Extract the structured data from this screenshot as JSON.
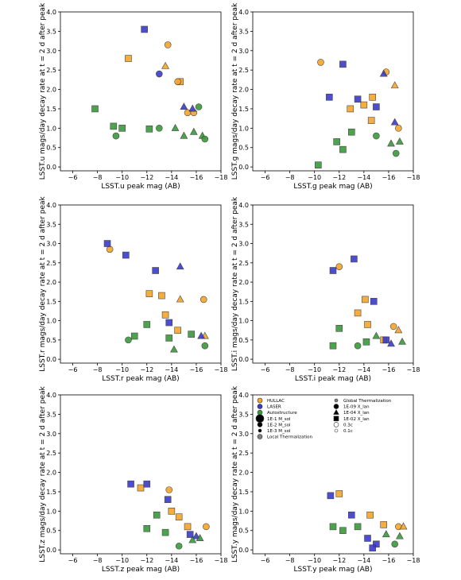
{
  "chart_data": [
    {
      "type": "scatter",
      "xlabel": "LSST.u peak mag (AB)",
      "ylabel": "LSST.u mags/day decay rate at t = 2 d after peak",
      "xlim": [
        -5,
        -18
      ],
      "ylim": [
        -0.1,
        4.0
      ],
      "xticks": [
        {
          "value": -6,
          "label": "−6"
        },
        {
          "value": -8,
          "label": "−8"
        },
        {
          "value": -10,
          "label": "−10"
        },
        {
          "value": -12,
          "label": "−12"
        },
        {
          "value": -14,
          "label": "−14"
        },
        {
          "value": -16,
          "label": "−16"
        },
        {
          "value": -18,
          "label": "−18"
        }
      ],
      "yticks": [
        {
          "value": 0,
          "label": "0.0"
        },
        {
          "value": 0.5,
          "label": "0.5"
        },
        {
          "value": 1,
          "label": "1.0"
        },
        {
          "value": 1.5,
          "label": "1.5"
        },
        {
          "value": 2,
          "label": "2.0"
        },
        {
          "value": 2.5,
          "label": "2.5"
        },
        {
          "value": 3,
          "label": "3.0"
        },
        {
          "value": 3.5,
          "label": "3.5"
        },
        {
          "value": 4,
          "label": "4.0"
        }
      ],
      "series": [
        {
          "color": "#f4a52a",
          "markers": [
            "s",
            "s",
            "^",
            "o",
            "o",
            "o",
            "o"
          ],
          "x": [
            -10.5,
            -14.7,
            -13.5,
            -13.7,
            -15.3,
            -15.8,
            -14.5
          ],
          "y": [
            2.8,
            2.2,
            2.6,
            3.15,
            1.4,
            1.4,
            2.2
          ]
        },
        {
          "color": "#3a3acc",
          "markers": [
            "s",
            "o",
            "^",
            "^"
          ],
          "x": [
            -11.8,
            -13,
            -15,
            -15.7
          ],
          "y": [
            3.55,
            2.4,
            1.55,
            1.5
          ]
        },
        {
          "color": "#3a9a3a",
          "markers": [
            "s",
            "s",
            "s",
            "s",
            "^",
            "^",
            "^",
            "^",
            "o",
            "o",
            "o",
            "o"
          ],
          "x": [
            -7.8,
            -9.3,
            -12.2,
            -10,
            -15,
            -15.8,
            -16.5,
            -14.3,
            -16.2,
            -16.7,
            -13,
            -9.5
          ],
          "y": [
            1.5,
            1.05,
            0.98,
            1.0,
            0.8,
            0.9,
            0.8,
            1.0,
            1.55,
            0.72,
            1.0,
            0.8
          ]
        }
      ]
    },
    {
      "type": "scatter",
      "xlabel": "LSST.g peak mag (AB)",
      "ylabel": "LSST.g mags/day decay rate at t = 2 d after peak",
      "xlim": [
        -5,
        -18
      ],
      "ylim": [
        -0.1,
        4.0
      ],
      "xticks": [
        {
          "value": -6,
          "label": "−6"
        },
        {
          "value": -8,
          "label": "−8"
        },
        {
          "value": -10,
          "label": "−10"
        },
        {
          "value": -12,
          "label": "−12"
        },
        {
          "value": -14,
          "label": "−14"
        },
        {
          "value": -16,
          "label": "−16"
        },
        {
          "value": -18,
          "label": "−18"
        }
      ],
      "yticks": [
        {
          "value": 0,
          "label": "0.0"
        },
        {
          "value": 0.5,
          "label": "0.5"
        },
        {
          "value": 1,
          "label": "1.0"
        },
        {
          "value": 1.5,
          "label": "1.5"
        },
        {
          "value": 2,
          "label": "2.0"
        },
        {
          "value": 2.5,
          "label": "2.5"
        },
        {
          "value": 3,
          "label": "3.0"
        },
        {
          "value": 3.5,
          "label": "3.5"
        },
        {
          "value": 4,
          "label": "4.0"
        }
      ],
      "series": [
        {
          "color": "#f4a52a",
          "markers": [
            "o",
            "s",
            "s",
            "o",
            "^",
            "o",
            "s",
            "s"
          ],
          "x": [
            -10.5,
            -14,
            -14.7,
            -15.8,
            -16.5,
            -16.8,
            -14.6,
            -12.9
          ],
          "y": [
            2.7,
            1.6,
            1.8,
            2.45,
            2.1,
            1.0,
            1.2,
            1.5
          ]
        },
        {
          "color": "#3a3acc",
          "markers": [
            "s",
            "s",
            "s",
            "s",
            "^",
            "^"
          ],
          "x": [
            -12.3,
            -11.2,
            -13.5,
            -15,
            -16.5,
            -15.6
          ],
          "y": [
            2.65,
            1.8,
            1.75,
            1.55,
            1.15,
            2.4
          ]
        },
        {
          "color": "#3a9a3a",
          "markers": [
            "s",
            "s",
            "s",
            "^",
            "o",
            "^",
            "s",
            "o"
          ],
          "x": [
            -12.3,
            -11.8,
            -13,
            -16.2,
            -16.6,
            -16.9,
            -10.3,
            -15
          ],
          "y": [
            0.45,
            0.65,
            0.9,
            0.6,
            0.35,
            0.65,
            0.05,
            0.8
          ]
        }
      ]
    },
    {
      "type": "scatter",
      "xlabel": "LSST.r peak mag (AB)",
      "ylabel": "LSST.r mags/day decay rate at t = 2 d after peak",
      "xlim": [
        -5,
        -18
      ],
      "ylim": [
        -0.1,
        4.0
      ],
      "xticks": [
        {
          "value": -6,
          "label": "−6"
        },
        {
          "value": -8,
          "label": "−8"
        },
        {
          "value": -10,
          "label": "−10"
        },
        {
          "value": -12,
          "label": "−12"
        },
        {
          "value": -14,
          "label": "−14"
        },
        {
          "value": -16,
          "label": "−16"
        },
        {
          "value": -18,
          "label": "−18"
        }
      ],
      "yticks": [
        {
          "value": 0,
          "label": "0.0"
        },
        {
          "value": 0.5,
          "label": "0.5"
        },
        {
          "value": 1,
          "label": "1.0"
        },
        {
          "value": 1.5,
          "label": "1.5"
        },
        {
          "value": 2,
          "label": "2.0"
        },
        {
          "value": 2.5,
          "label": "2.5"
        },
        {
          "value": 3,
          "label": "3.0"
        },
        {
          "value": 3.5,
          "label": "3.5"
        },
        {
          "value": 4,
          "label": "4.0"
        }
      ],
      "series": [
        {
          "color": "#f4a52a",
          "markers": [
            "o",
            "s",
            "s",
            "o",
            "^",
            "s",
            "s",
            "^"
          ],
          "x": [
            -9,
            -12.2,
            -13.2,
            -16.6,
            -16.7,
            -14.5,
            -13.5,
            -14.7
          ],
          "y": [
            2.85,
            1.7,
            1.65,
            1.55,
            0.6,
            0.75,
            1.15,
            1.55
          ]
        },
        {
          "color": "#3a3acc",
          "markers": [
            "s",
            "s",
            "s",
            "^",
            "s",
            "^"
          ],
          "x": [
            -8.8,
            -10.3,
            -12.7,
            -14.7,
            -13.8,
            -16.4
          ],
          "y": [
            3.0,
            2.7,
            2.3,
            2.4,
            0.95,
            0.6
          ]
        },
        {
          "color": "#3a9a3a",
          "markers": [
            "o",
            "s",
            "s",
            "s",
            "o",
            "^",
            "s"
          ],
          "x": [
            -10.5,
            -11,
            -13.8,
            -15.6,
            -16.7,
            -14.2,
            -12
          ],
          "y": [
            0.5,
            0.6,
            0.55,
            0.65,
            0.35,
            0.25,
            0.9
          ]
        }
      ]
    },
    {
      "type": "scatter",
      "xlabel": "LSST.i peak mag (AB)",
      "ylabel": "LSST.i mags/day decay rate at t = 2 d after peak",
      "xlim": [
        -5,
        -18
      ],
      "ylim": [
        -0.1,
        4.0
      ],
      "xticks": [
        {
          "value": -6,
          "label": "−6"
        },
        {
          "value": -8,
          "label": "−8"
        },
        {
          "value": -10,
          "label": "−10"
        },
        {
          "value": -12,
          "label": "−12"
        },
        {
          "value": -14,
          "label": "−14"
        },
        {
          "value": -16,
          "label": "−16"
        },
        {
          "value": -18,
          "label": "−18"
        }
      ],
      "yticks": [
        {
          "value": 0,
          "label": "0.0"
        },
        {
          "value": 0.5,
          "label": "0.5"
        },
        {
          "value": 1,
          "label": "1.0"
        },
        {
          "value": 1.5,
          "label": "1.5"
        },
        {
          "value": 2,
          "label": "2.0"
        },
        {
          "value": 2.5,
          "label": "2.5"
        },
        {
          "value": 3,
          "label": "3.0"
        },
        {
          "value": 3.5,
          "label": "3.5"
        },
        {
          "value": 4,
          "label": "4.0"
        }
      ],
      "series": [
        {
          "color": "#f4a52a",
          "markers": [
            "o",
            "s",
            "o",
            "^",
            "s",
            "s",
            "s"
          ],
          "x": [
            -12,
            -14.1,
            -16.4,
            -16.8,
            -14.3,
            -15.6,
            -13.5
          ],
          "y": [
            2.4,
            1.55,
            0.85,
            0.75,
            0.9,
            0.5,
            1.2
          ]
        },
        {
          "color": "#3a3acc",
          "markers": [
            "s",
            "s",
            "s",
            "s",
            "^"
          ],
          "x": [
            -11.5,
            -13.2,
            -14.8,
            -15.8,
            -16.2
          ],
          "y": [
            2.3,
            2.6,
            1.5,
            0.5,
            0.4
          ]
        },
        {
          "color": "#3a9a3a",
          "markers": [
            "s",
            "o",
            "s",
            "^",
            "^",
            "s"
          ],
          "x": [
            -11.5,
            -13.5,
            -14.2,
            -17.1,
            -15,
            -12
          ],
          "y": [
            0.35,
            0.35,
            0.45,
            0.45,
            0.6,
            0.8
          ]
        }
      ]
    },
    {
      "type": "scatter",
      "xlabel": "LSST.z peak mag (AB)",
      "ylabel": "LSST.z mags/day decay rate at t = 2 d after peak",
      "xlim": [
        -5,
        -18
      ],
      "ylim": [
        -0.1,
        4.0
      ],
      "xticks": [
        {
          "value": -6,
          "label": "−6"
        },
        {
          "value": -8,
          "label": "−8"
        },
        {
          "value": -10,
          "label": "−10"
        },
        {
          "value": -12,
          "label": "−12"
        },
        {
          "value": -14,
          "label": "−14"
        },
        {
          "value": -16,
          "label": "−16"
        },
        {
          "value": -18,
          "label": "−18"
        }
      ],
      "yticks": [
        {
          "value": 0,
          "label": "0.0"
        },
        {
          "value": 0.5,
          "label": "0.5"
        },
        {
          "value": 1,
          "label": "1.0"
        },
        {
          "value": 1.5,
          "label": "1.5"
        },
        {
          "value": 2,
          "label": "2.0"
        },
        {
          "value": 2.5,
          "label": "2.5"
        },
        {
          "value": 3,
          "label": "3.0"
        },
        {
          "value": 3.5,
          "label": "3.5"
        },
        {
          "value": 4,
          "label": "4.0"
        }
      ],
      "series": [
        {
          "color": "#f4a52a",
          "markers": [
            "s",
            "o",
            "s",
            "o",
            "s",
            "s"
          ],
          "x": [
            -11.5,
            -13.8,
            -15.3,
            -16.8,
            -14,
            -14.6
          ],
          "y": [
            1.6,
            1.55,
            0.6,
            0.6,
            1.0,
            0.85
          ]
        },
        {
          "color": "#3a3acc",
          "markers": [
            "s",
            "s",
            "s",
            "s",
            "^"
          ],
          "x": [
            -10.7,
            -12,
            -13.7,
            -15.5,
            -16
          ],
          "y": [
            1.7,
            1.7,
            1.3,
            0.4,
            0.35
          ]
        },
        {
          "color": "#3a9a3a",
          "markers": [
            "s",
            "s",
            "^",
            "^",
            "s",
            "o"
          ],
          "x": [
            -12,
            -13.5,
            -15.7,
            -16.3,
            -12.8,
            -14.6
          ],
          "y": [
            0.55,
            0.45,
            0.25,
            0.3,
            0.9,
            0.1
          ]
        }
      ]
    },
    {
      "type": "scatter",
      "xlabel": "LSST.y peak mag (AB)",
      "ylabel": "LSST.y mags/day decay rate at t = 2 d after peak",
      "xlim": [
        -5,
        -18
      ],
      "ylim": [
        -0.1,
        4.0
      ],
      "xticks": [
        {
          "value": -6,
          "label": "−6"
        },
        {
          "value": -8,
          "label": "−8"
        },
        {
          "value": -10,
          "label": "−10"
        },
        {
          "value": -12,
          "label": "−12"
        },
        {
          "value": -14,
          "label": "−14"
        },
        {
          "value": -16,
          "label": "−16"
        },
        {
          "value": -18,
          "label": "−18"
        }
      ],
      "yticks": [
        {
          "value": 0,
          "label": "0.0"
        },
        {
          "value": 0.5,
          "label": "0.5"
        },
        {
          "value": 1,
          "label": "1.0"
        },
        {
          "value": 1.5,
          "label": "1.5"
        },
        {
          "value": 2,
          "label": "2.0"
        },
        {
          "value": 2.5,
          "label": "2.5"
        },
        {
          "value": 3,
          "label": "3.0"
        },
        {
          "value": 3.5,
          "label": "3.5"
        },
        {
          "value": 4,
          "label": "4.0"
        }
      ],
      "series": [
        {
          "color": "#f4a52a",
          "markers": [
            "s",
            "s",
            "s",
            "o",
            "^"
          ],
          "x": [
            -12,
            -14.5,
            -15.6,
            -16.8,
            -17.2
          ],
          "y": [
            1.45,
            0.9,
            0.65,
            0.6,
            0.6
          ]
        },
        {
          "color": "#3a3acc",
          "markers": [
            "s",
            "s",
            "s",
            "s",
            "s"
          ],
          "x": [
            -11.3,
            -13,
            -14.3,
            -15,
            -14.7
          ],
          "y": [
            1.4,
            0.9,
            0.3,
            0.15,
            0.05
          ]
        },
        {
          "color": "#3a9a3a",
          "markers": [
            "s",
            "s",
            "^",
            "o",
            "s",
            "^"
          ],
          "x": [
            -11.5,
            -12.3,
            -15.8,
            -16.5,
            -13.5,
            -16.9
          ],
          "y": [
            0.6,
            0.5,
            0.4,
            0.15,
            0.6,
            0.35
          ]
        }
      ],
      "legend": [
        {
          "label": "HULLAC",
          "color": "#f4a52a",
          "marker": "o-mid"
        },
        {
          "label": "LASER",
          "color": "#3a3acc",
          "marker": "o-mid"
        },
        {
          "label": "Autostructure",
          "color": "#3a9a3a",
          "marker": "o-mid"
        },
        {
          "label": "1E-1 M_sol",
          "color": "#000000",
          "marker": "o-large"
        },
        {
          "label": "1E-2 M_sol",
          "color": "#000000",
          "marker": "o-mid"
        },
        {
          "label": "1E-3 M_sol",
          "color": "#000000",
          "marker": "o-small"
        },
        {
          "label": "Local Thermalization",
          "color": "#808080",
          "marker": "o-mid"
        },
        {
          "label": "Global Thermalization",
          "color": "#808080",
          "marker": "o-small"
        },
        {
          "label": "1E-09 X_lan",
          "color": "#000000",
          "marker": "o-mid"
        },
        {
          "label": "1E-04 X_lan",
          "color": "#000000",
          "marker": "^"
        },
        {
          "label": "1E-02 X_lan",
          "color": "#000000",
          "marker": "s"
        },
        {
          "label": "0.3c",
          "color": "#ffffff",
          "marker": "o-mid"
        },
        {
          "label": "0.1c",
          "color": "#ffffff",
          "marker": "o-small"
        }
      ]
    }
  ]
}
